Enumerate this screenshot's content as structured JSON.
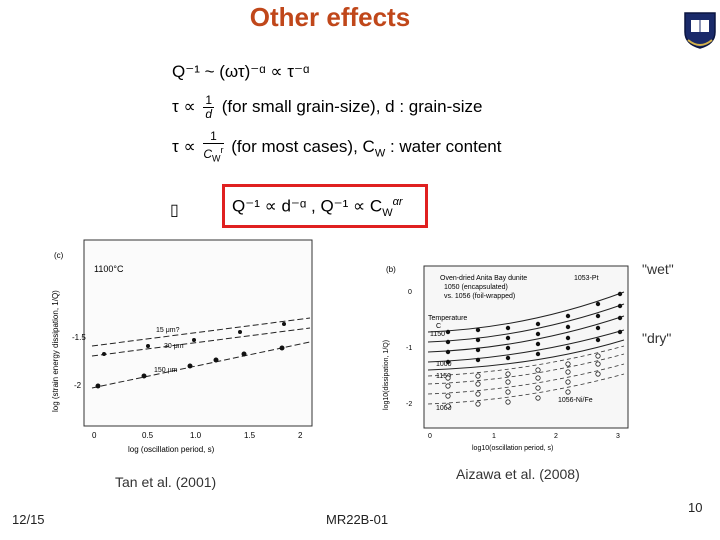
{
  "slide": {
    "title": "Other effects",
    "page_number": "10",
    "date": "12/15",
    "code": "MR22B-01"
  },
  "equations": {
    "eq1": "Q⁻¹ ~ (ωτ)⁻ᵅ ∝ τ⁻ᵅ",
    "eq2_prefix": "τ ∝",
    "eq2_num": "1",
    "eq2_den": "d",
    "eq2_text": "(for small grain-size), d : grain-size",
    "eq3_prefix": "τ ∝",
    "eq3_num": "1",
    "eq3_den": "C",
    "eq3_den_sub": "W",
    "eq3_den_sup": "r",
    "eq3_text": "(for most cases), C",
    "eq3_text_sub": "W",
    "eq3_text_tail": " : water content",
    "result": "Q⁻¹ ∝ d⁻ᵅ , Q⁻¹ ∝ C",
    "result_sub": "W",
    "result_sup": "αr",
    "bullet": "▯"
  },
  "left_plot": {
    "temperature": "1100°C",
    "ylabel": "log (strain energy dissipation, 1/Q)",
    "xlabel": "log (oscillation period, s)",
    "xticks": [
      "0",
      "0.5",
      "1.0",
      "1.5",
      "2"
    ],
    "yticks": [
      "-1.5",
      "-2"
    ],
    "series_labels": [
      "15 μm?",
      "30 μm",
      "150 μm"
    ],
    "panel_tag": "(c)",
    "caption": "Tan et al. (2001)"
  },
  "right_plot": {
    "panel_tag": "(b)",
    "legend_lines": [
      "Oven-dried Anita Bay dunite",
      "1050 (encapsulated)",
      "vs. 1056 (foil-wrapped)"
    ],
    "tag_top": "1053-Pt",
    "tag_bottom": "1056-Ni/Fe",
    "temp_label": "Temperature",
    "temp_unit": "C",
    "temp_values": [
      "1150",
      "1000",
      "1150",
      "1000"
    ],
    "ylabel": "log10(dissipation, 1/Q)",
    "xlabel": "log10(oscillation period, s)",
    "xticks": [
      "0",
      "1",
      "2",
      "3"
    ],
    "yticks": [
      "0",
      "-1",
      "-2"
    ],
    "wet_label": "\"wet\"",
    "dry_label": "\"dry\"",
    "caption": "Aizawa et al. (2008)"
  },
  "colors": {
    "title": "#c0471a",
    "box": "#e02020"
  }
}
